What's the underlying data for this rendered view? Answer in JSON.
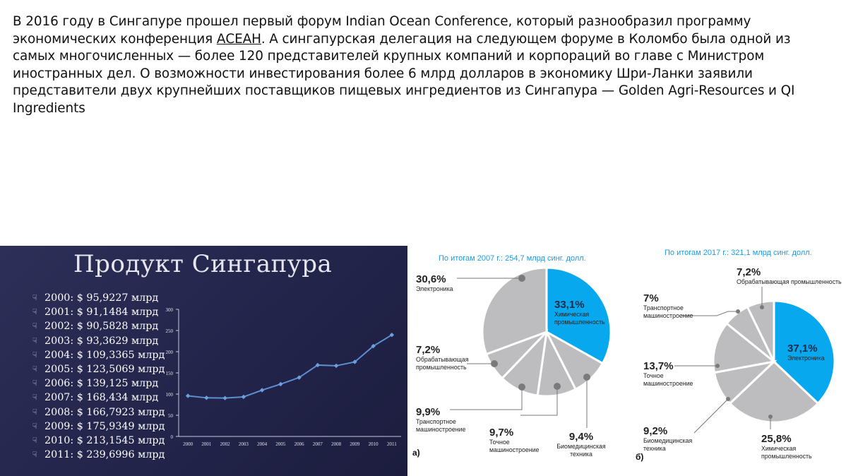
{
  "intro": {
    "before": "В 2016 году в Сингапуре прошел первый форум Indian Ocean Conference, который разнообразил программу экономических конференция ",
    "link": "АСЕАН",
    "after": ". А сингапурская делегация на следующем форуме в Коломбо была одной из самых многочисленных — более 120 представителей крупных компаний и корпораций во главе с Министром иностранных дел. О возможности инвестирования более 6 млрд долларов в экономику Шри-Ланки заявили представители двух крупнейших поставщиков пищевых ингредиентов из Сингапура — Golden Agri-Resources и QI Ingredients"
  },
  "slide": {
    "title": "Продукт Сингапура",
    "bullets": [
      "2000:  $ 95,9227 млрд",
      "2001:  $ 91,1484 млрд",
      "2002:  $ 90,5828 млрд",
      "2003:  $ 93,3629 млрд",
      "2004:  $ 109,3365 млрд",
      "2005:  $ 123,5069 млрд",
      "2006:  $ 139,125 млрд",
      "2007:  $ 168,434 млрд",
      "2008:  $ 166,7923 млрд",
      "2009:  $ 175,9349 млрд",
      "2010:  $ 213,1545 млрд",
      "2011:  $ 239,6996 млрд"
    ],
    "bullet_icon": "hand-pointer-icon"
  },
  "pies": {
    "a": {
      "letter": "а)",
      "title": "По итогам 2007 г.: 254,7 млрд синг. долл.",
      "slices": [
        {
          "pct": "33,1%",
          "label": "Химическая промышленность"
        },
        {
          "pct": "9,4%",
          "label": "Биомедицинская техника"
        },
        {
          "pct": "9,7%",
          "label": "Точное машиностроение"
        },
        {
          "pct": "9,9%",
          "label": "Транспортное машиностроение"
        },
        {
          "pct": "7,2%",
          "label": "Обрабатывающая промышленность"
        },
        {
          "pct": "30,6%",
          "label": "Электроника"
        }
      ]
    },
    "b": {
      "letter": "б)",
      "title": "По итогам 2017 г.: 321,1 млрд синг. долл.",
      "slices": [
        {
          "pct": "37,1%",
          "label": "Электроника"
        },
        {
          "pct": "25,8%",
          "label": "Химическая промышленность"
        },
        {
          "pct": "9,2%",
          "label": "Биомедицинская техника"
        },
        {
          "pct": "13,7%",
          "label": "Точное машиностроение"
        },
        {
          "pct": "7%",
          "label": "Транспортное машиностроение"
        },
        {
          "pct": "7,2%",
          "label": "Обрабатывающая промышленность"
        }
      ]
    }
  },
  "colors": {
    "accent": "#08a8ee",
    "gray": "#bdbdbf",
    "line": "#5b8fd0",
    "title_blue": "#1a9be6"
  },
  "chart_data": [
    {
      "type": "line",
      "x": [
        "2000",
        "2001",
        "2002",
        "2003",
        "2004",
        "2005",
        "2006",
        "2007",
        "2008",
        "2009",
        "2010",
        "2011"
      ],
      "series": [
        {
          "values": [
            95.9227,
            91.1484,
            90.5828,
            93.3629,
            109.3365,
            123.5069,
            139.125,
            168.434,
            166.7923,
            175.9349,
            213.1545,
            239.6996
          ]
        }
      ],
      "ylim": [
        0,
        300
      ],
      "yticks": [
        0,
        50,
        100,
        150,
        200,
        250,
        300
      ],
      "grid": false
    },
    {
      "type": "pie",
      "title": "По итогам 2007 г.: 254,7 млрд синг. долл.",
      "labels": [
        "Химическая промышленность",
        "Биомедицинская техника",
        "Точное машиностроение",
        "Транспортное машиностроение",
        "Обрабатывающая промышленность",
        "Электроника"
      ],
      "values": [
        33.1,
        9.4,
        9.7,
        9.9,
        7.2,
        30.6
      ]
    },
    {
      "type": "pie",
      "title": "По итогам 2017 г.: 321,1 млрд синг. долл.",
      "labels": [
        "Электроника",
        "Химическая промышленность",
        "Биомедицинская техника",
        "Точное машиностроение",
        "Транспортное машиностроение",
        "Обрабатывающая промышленность"
      ],
      "values": [
        37.1,
        25.8,
        9.2,
        13.7,
        7.0,
        7.2
      ]
    }
  ]
}
